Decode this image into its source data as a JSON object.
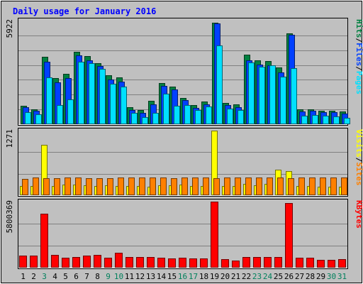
{
  "chart_data": {
    "type": "bar",
    "title": "Daily usage for January 2016",
    "categories": [
      "1",
      "2",
      "3",
      "4",
      "5",
      "6",
      "7",
      "8",
      "9",
      "10",
      "11",
      "12",
      "13",
      "14",
      "15",
      "16",
      "17",
      "18",
      "19",
      "20",
      "21",
      "22",
      "23",
      "24",
      "25",
      "26",
      "27",
      "28",
      "29",
      "30",
      "31"
    ],
    "weekend_days": [
      "3",
      "9",
      "10",
      "16",
      "17",
      "23",
      "24",
      "30",
      "31"
    ],
    "colors": {
      "hits": "#008040",
      "files": "#0040FF",
      "pages": "#00E0FF",
      "visits": "#FFFF00",
      "sites": "#FF8000",
      "kbytes": "#FF0000",
      "title": "#0000FF",
      "weekday_label": "#000000",
      "weekend_label": "#00805C",
      "background": "#C0C0C0",
      "plot": "#C0C0C0"
    },
    "panels": [
      {
        "id": "top",
        "max_label": "5922",
        "max_value": 5922,
        "legend": [
          {
            "text": "Hits",
            "color": "#008040"
          },
          {
            "text": "/",
            "color": "#000000"
          },
          {
            "text": "Files",
            "color": "#0040FF"
          },
          {
            "text": "/",
            "color": "#000000"
          },
          {
            "text": "Pages",
            "color": "#00E0FF"
          }
        ],
        "series": [
          {
            "name": "Hits",
            "color": "#008040",
            "values": [
              1060,
              860,
              3850,
              2640,
              2880,
              4150,
              3880,
              3500,
              2810,
              2660,
              984,
              807,
              1350,
              2360,
              2140,
              1500,
              1080,
              1310,
              5820,
              1235,
              1120,
              3960,
              3640,
              3620,
              3240,
              5200,
              850,
              870,
              790,
              760,
              710
            ]
          },
          {
            "name": "Files",
            "color": "#0040FF",
            "values": [
              980,
              760,
              3550,
              2400,
              2640,
              3950,
              3660,
              3320,
              2540,
              2420,
              820,
              660,
              1130,
              2180,
              1990,
              1360,
              950,
              1150,
              5740,
              1100,
              990,
              3660,
              3420,
              3360,
              2980,
              5100,
              750,
              760,
              700,
              670,
              610
            ]
          },
          {
            "name": "Pages",
            "color": "#00E0FF",
            "values": [
              670,
              570,
              2670,
              1090,
              1410,
              3550,
              3490,
              3150,
              2320,
              2160,
              650,
              420,
              640,
              1740,
              1060,
              1090,
              830,
              1020,
              4500,
              890,
              800,
              3520,
              3280,
              3370,
              2730,
              3200,
              470,
              520,
              480,
              460,
              380
            ]
          }
        ]
      },
      {
        "id": "middle",
        "max_label": "1271",
        "max_value": 1271,
        "legend": [
          {
            "text": "Visits",
            "color": "#FFFF00"
          },
          {
            "text": "/",
            "color": "#000000"
          },
          {
            "text": "Sites",
            "color": "#FF8000"
          }
        ],
        "series": [
          {
            "name": "Visits",
            "color": "#FFFF00",
            "values": [
              175,
              182,
              989,
              176,
              210,
              208,
              198,
              183,
              189,
              179,
              175,
              185,
              170,
              200,
              200,
              204,
              176,
              178,
              1271,
              182,
              186,
              218,
              198,
              220,
              496,
              475,
              186,
              180,
              173,
              173,
              170
            ]
          },
          {
            "name": "Sites",
            "color": "#FF8000",
            "values": [
              327,
              349,
              339,
              337,
              349,
              353,
              340,
              336,
              336,
              349,
              349,
              343,
              347,
              346,
              341,
              350,
              347,
              352,
              339,
              347,
              350,
              353,
              347,
              343,
              352,
              340,
              349,
              345,
              349,
              352,
              345
            ]
          }
        ]
      },
      {
        "id": "bottom",
        "max_label": "5800369",
        "max_value": 5800369,
        "legend": [
          {
            "text": "KBytes",
            "color": "#FF0000"
          }
        ],
        "series": [
          {
            "name": "KBytes",
            "color": "#FF0000",
            "values": [
              1040000,
              1030000,
              4770000,
              1150000,
              880000,
              960000,
              1090000,
              1150000,
              880000,
              1330000,
              940000,
              940000,
              960000,
              860000,
              780000,
              880000,
              800000,
              780000,
              5800369,
              720000,
              650000,
              920000,
              920000,
              920000,
              960000,
              5700000,
              860000,
              860000,
              680000,
              700000,
              720000
            ]
          }
        ]
      }
    ]
  }
}
